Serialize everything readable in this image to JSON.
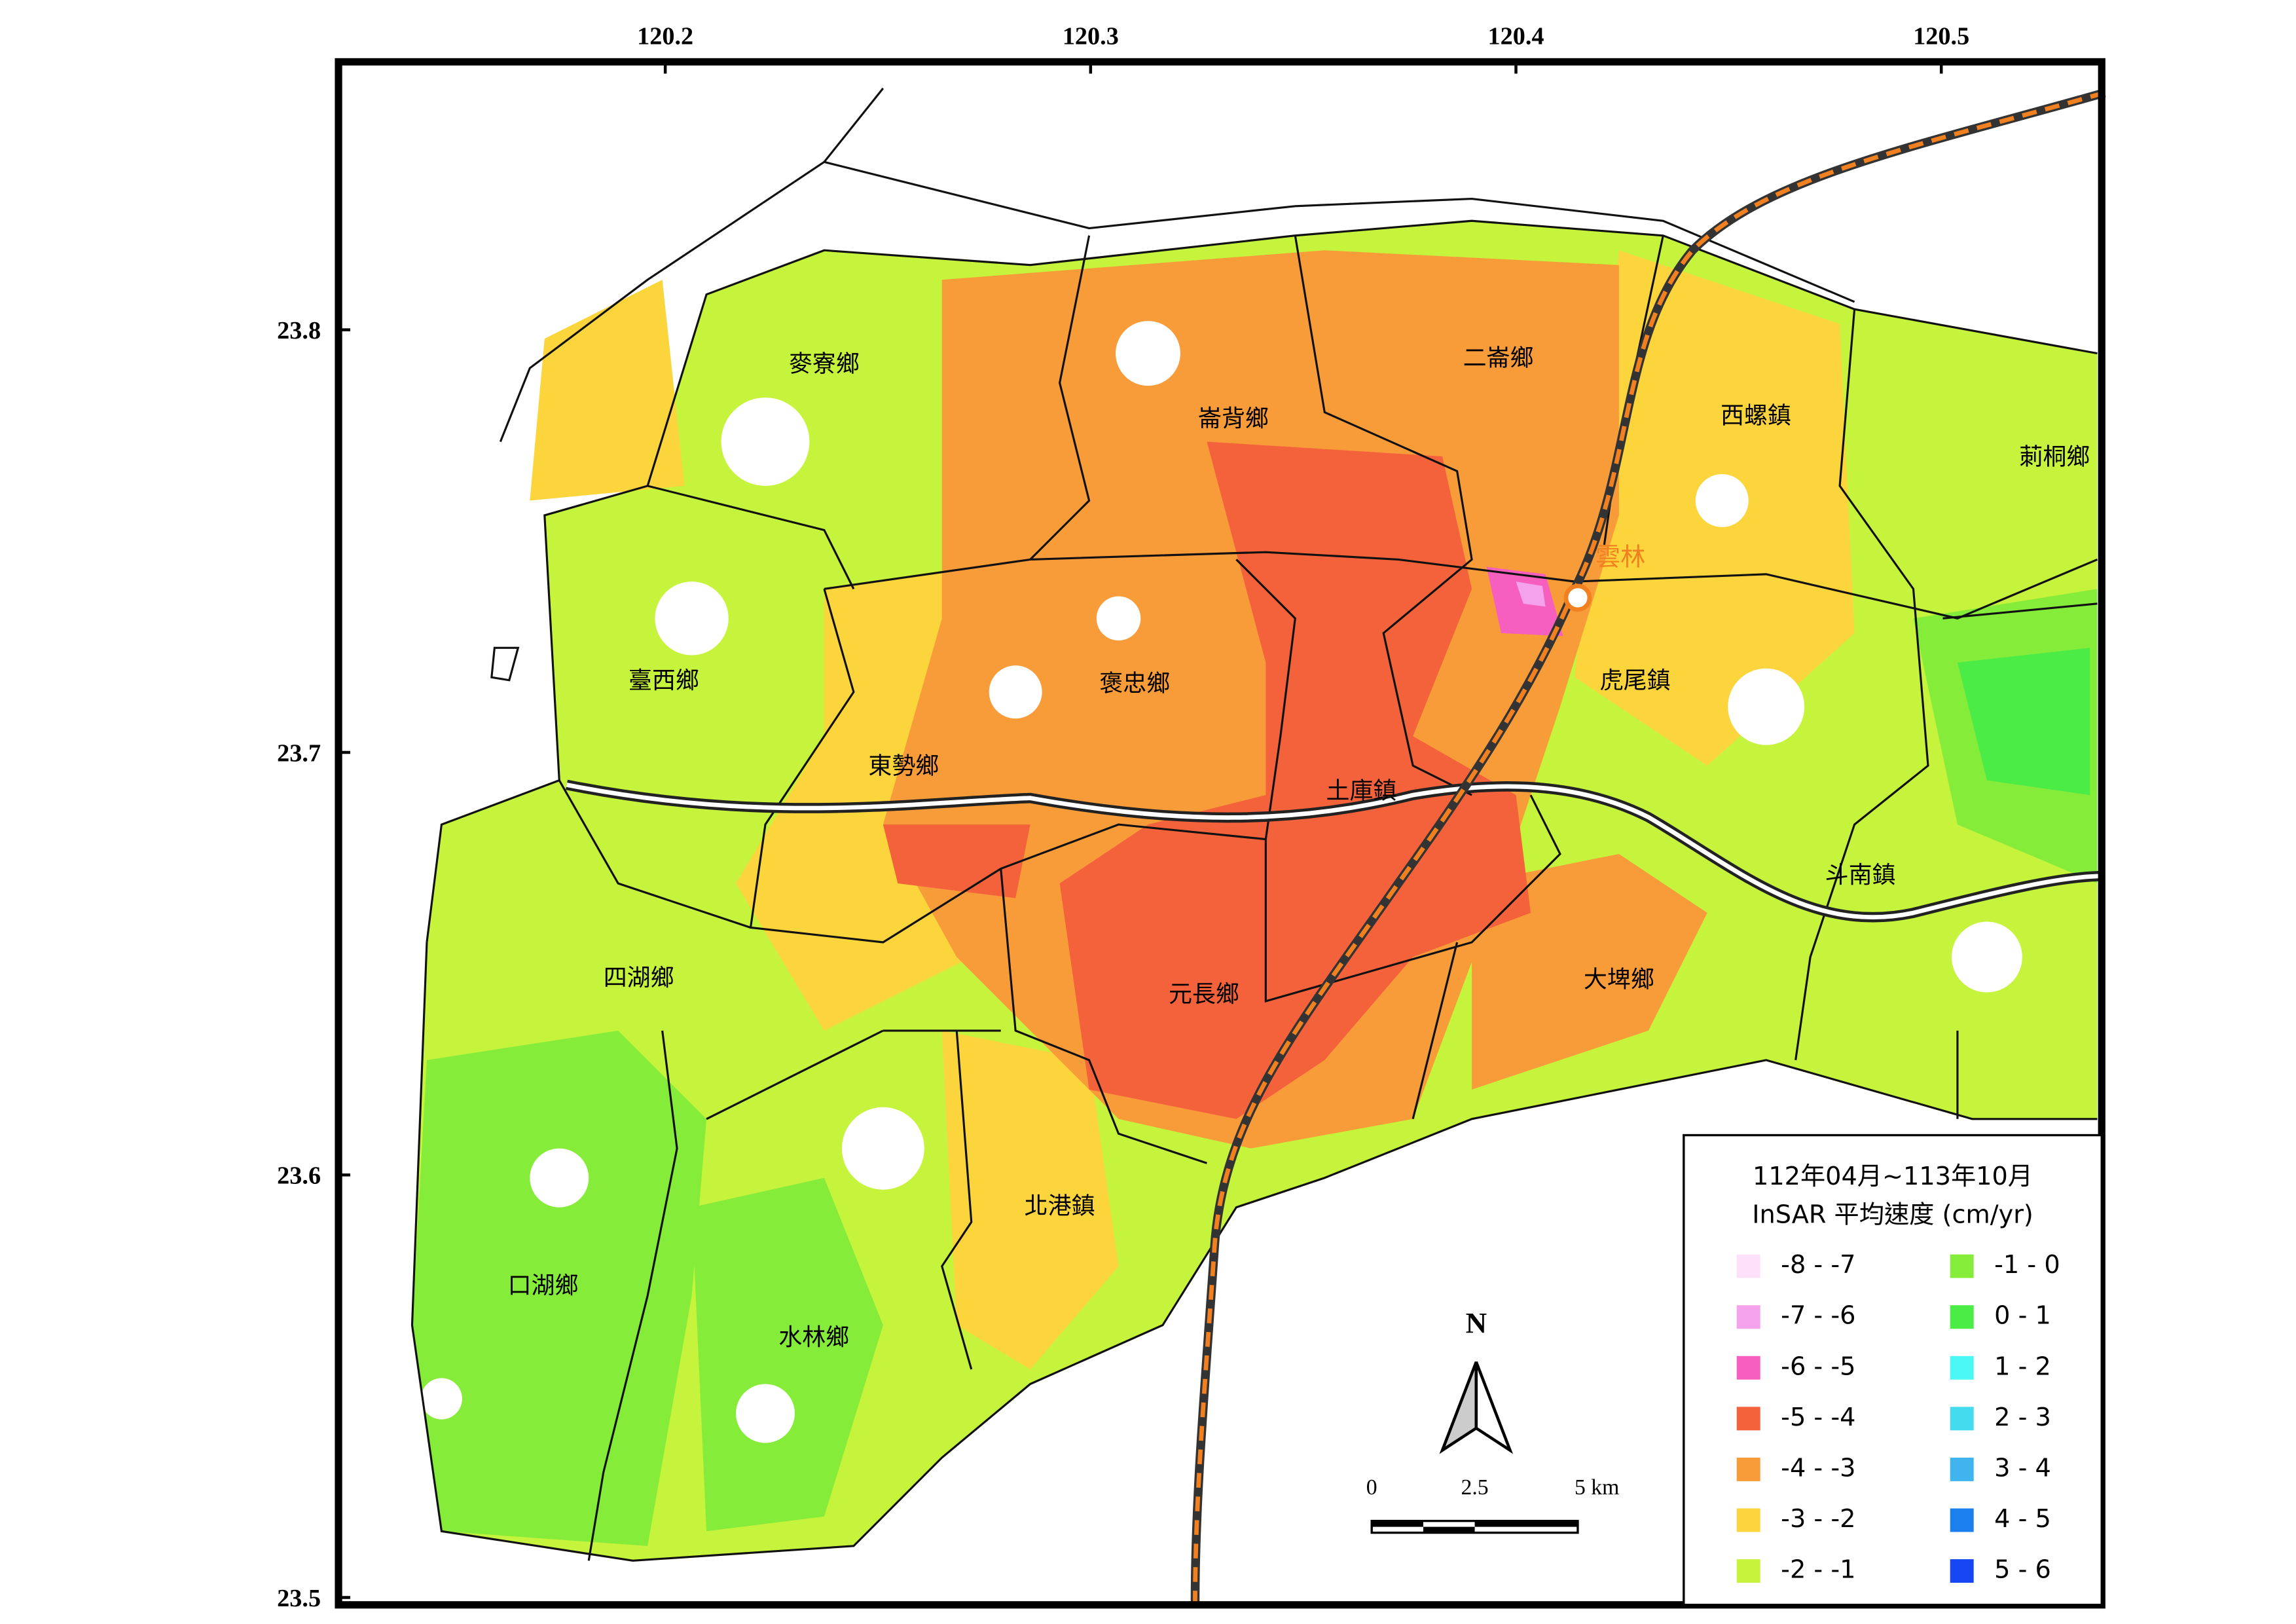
{
  "map": {
    "lon_ticks": [
      120.2,
      120.3,
      120.4,
      120.5
    ],
    "lat_ticks": [
      23.8,
      23.7,
      23.6,
      23.5
    ],
    "towns": [
      "麥寮鄉",
      "崙背鄉",
      "二崙鄉",
      "西螺鎮",
      "莿桐鄉",
      "臺西鄉",
      "褒忠鄉",
      "虎尾鎮",
      "東勢鄉",
      "土庫鎮",
      "斗南鎮",
      "四湖鄉",
      "元長鄉",
      "大埤鄉",
      "北港鎮",
      "口湖鄉",
      "水林鄉"
    ],
    "station": "雲林",
    "north": "N",
    "scale_bar": [
      "0",
      "2.5",
      "5 km"
    ],
    "legend": {
      "title": [
        "112年04月~113年10月",
        "InSAR 平均速度 (cm/yr)"
      ],
      "items": [
        {
          "label": "-8 - -7",
          "color": "#fde0fa"
        },
        {
          "label": "-7 - -6",
          "color": "#f5a2ec"
        },
        {
          "label": "-6 - -5",
          "color": "#f65fbd"
        },
        {
          "label": "-5 - -4",
          "color": "#f4623c"
        },
        {
          "label": "-4 - -3",
          "color": "#f89c3a"
        },
        {
          "label": "-3 - -2",
          "color": "#fcd53d"
        },
        {
          "label": "-2 - -1",
          "color": "#c6f33b"
        },
        {
          "label": "-1 - 0",
          "color": "#86ec3a"
        },
        {
          "label": "0 - 1",
          "color": "#4cec46"
        },
        {
          "label": "1 - 2",
          "color": "#4bf8f4"
        },
        {
          "label": "2 - 3",
          "color": "#45dbef"
        },
        {
          "label": "3 - 4",
          "color": "#3fb4ef"
        },
        {
          "label": "4 - 5",
          "color": "#1b80ee"
        },
        {
          "label": "5 - 6",
          "color": "#1747f4"
        }
      ]
    }
  }
}
